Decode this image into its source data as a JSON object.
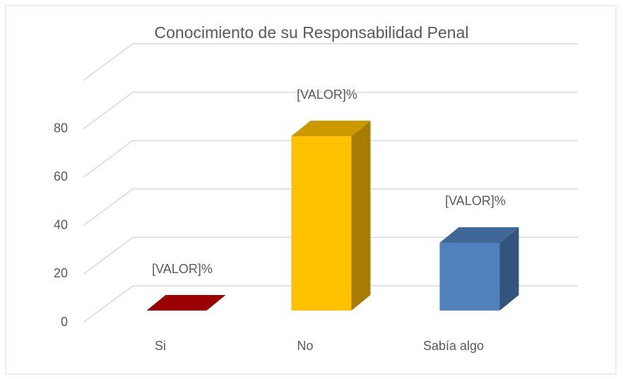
{
  "chart_data": {
    "type": "bar",
    "title": "Conocimiento de su Responsabilidad Penal",
    "categories": [
      "Si",
      "No",
      "Sabía algo"
    ],
    "values": [
      0,
      72,
      28
    ],
    "value_labels": [
      "[VALOR]%",
      "[VALOR]%",
      "[VALOR]%"
    ],
    "colors": [
      "#c00000",
      "#ffc000",
      "#4f81bd"
    ],
    "ylim": [
      0,
      100
    ],
    "yticks": [
      0,
      20,
      40,
      60,
      80
    ],
    "grid": true
  }
}
